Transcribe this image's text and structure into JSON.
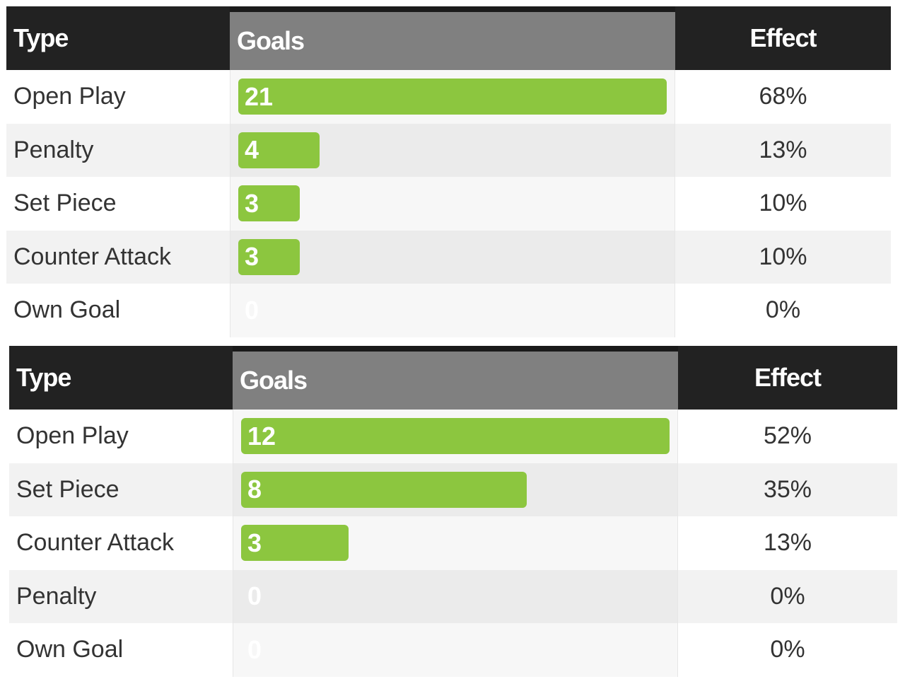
{
  "colors": {
    "header_dark": "#222222",
    "header_goals": "#808080",
    "bar": "#8cc63f",
    "row_alt": "#f2f2f2"
  },
  "chart_data": [
    {
      "type": "bar",
      "headers": {
        "type": "Type",
        "goals": "Goals",
        "effect": "Effect"
      },
      "categories": [
        "Open Play",
        "Penalty",
        "Set Piece",
        "Counter Attack",
        "Own Goal"
      ],
      "values": [
        21,
        4,
        3,
        3,
        0
      ],
      "value_labels": [
        "21",
        "4",
        "3",
        "3",
        "0"
      ],
      "effects": [
        "68%",
        "13%",
        "10%",
        "10%",
        "0%"
      ],
      "xlim": [
        0,
        21
      ]
    },
    {
      "type": "bar",
      "headers": {
        "type": "Type",
        "goals": "Goals",
        "effect": "Effect"
      },
      "categories": [
        "Open Play",
        "Set Piece",
        "Counter Attack",
        "Penalty",
        "Own Goal"
      ],
      "values": [
        12,
        8,
        3,
        0,
        0
      ],
      "value_labels": [
        "12",
        "8",
        "3",
        "0",
        "0"
      ],
      "effects": [
        "52%",
        "35%",
        "13%",
        "0%",
        "0%"
      ],
      "xlim": [
        0,
        12
      ]
    }
  ]
}
